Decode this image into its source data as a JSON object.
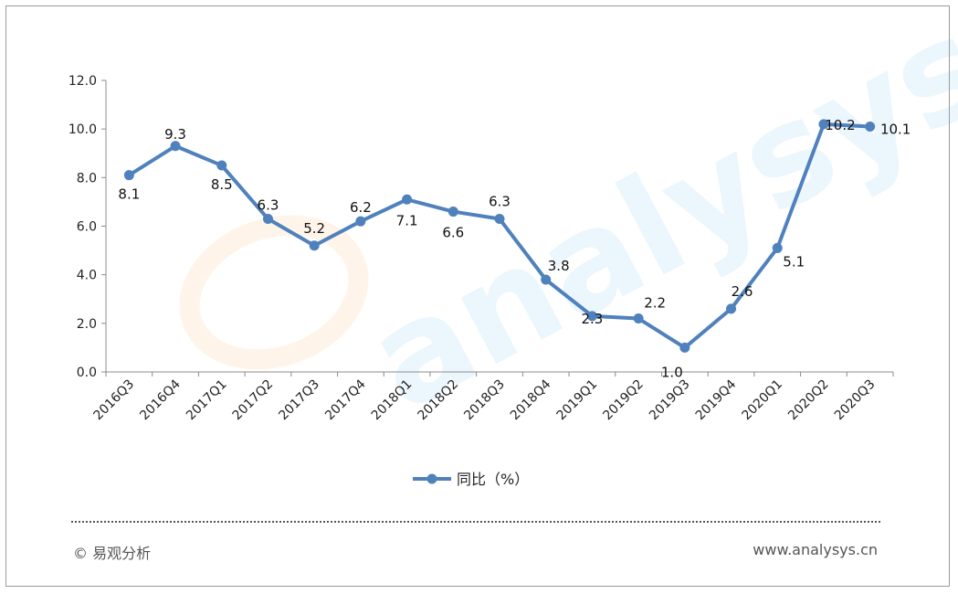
{
  "chart_data": {
    "type": "line",
    "categories": [
      "2016Q3",
      "2016Q4",
      "2017Q1",
      "2017Q2",
      "2017Q3",
      "2017Q4",
      "2018Q1",
      "2018Q2",
      "2018Q3",
      "2018Q4",
      "2019Q1",
      "2019Q2",
      "2019Q3",
      "2019Q4",
      "2020Q1",
      "2020Q2",
      "2020Q3"
    ],
    "series": [
      {
        "name": "同比（%）",
        "values": [
          8.1,
          9.3,
          8.5,
          6.3,
          5.2,
          6.2,
          7.1,
          6.6,
          6.3,
          3.8,
          2.3,
          2.2,
          1.0,
          2.6,
          5.1,
          10.2,
          10.1
        ],
        "labels": [
          "8.1",
          "9.3",
          "8.5",
          "6.3",
          "5.2",
          "6.2",
          "7.1",
          "6.6",
          "6.3",
          "3.8",
          "2.3",
          "2.2",
          "1.0",
          "2.6",
          "5.1",
          "10.2",
          "10.1"
        ]
      }
    ],
    "y_ticks": [
      "0.0",
      "2.0",
      "4.0",
      "6.0",
      "8.0",
      "10.0",
      "12.0"
    ],
    "ylim": [
      0,
      12
    ],
    "legend_position": "bottom",
    "grid": false,
    "line_color": "#4F81BD"
  },
  "footer": {
    "copyright": "© 易观分析",
    "website": "www.analysys.cn"
  }
}
